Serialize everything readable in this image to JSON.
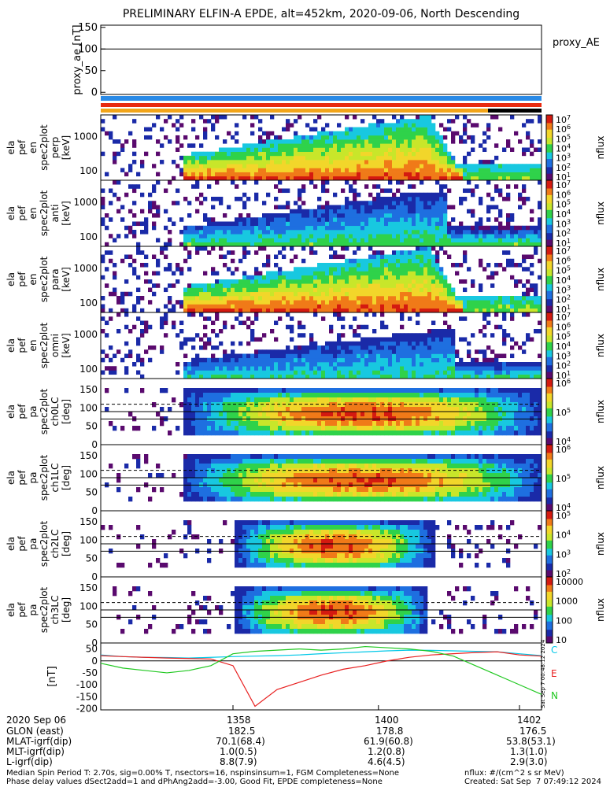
{
  "title": "PRELIMINARY ELFIN-A EPDE, alt=452km, 2020-09-06, North Descending",
  "side_stamp": "Sat Sep  7 00:48:12 2024",
  "colors": {
    "colorbar": [
      "#ffffff",
      "#5a0a6e",
      "#1a2aa8",
      "#1e6fe0",
      "#18c8e0",
      "#2fd24a",
      "#c8e62a",
      "#f2d62a",
      "#f07a18",
      "#d41a10"
    ]
  },
  "chart_data": [
    {
      "type": "line",
      "id": "proxy_ae",
      "ylabel": [
        "proxy_ae",
        "[nT]"
      ],
      "legend": "proxy_AE",
      "ylim": [
        -5,
        155
      ],
      "yticks": [
        "150",
        "100",
        "50",
        "0"
      ],
      "series": [
        {
          "name": "proxy_AE",
          "values_note": "",
          "values": [
            0
          ]
        }
      ]
    },
    {
      "type": "heatmap",
      "id": "spec-perp",
      "ylabel": [
        "ela",
        "pef",
        "en",
        "spec2plot",
        "perp",
        "[keV]"
      ],
      "log": true,
      "yticks": [
        "1000",
        "100"
      ],
      "colorbar": {
        "label": "nflux",
        "ticks": [
          "10",
          "10",
          "10",
          "10",
          "10",
          "10",
          "10"
        ],
        "exps": [
          "1",
          "2",
          "3",
          "4",
          "5",
          "6",
          "7"
        ]
      },
      "intensity": "perp"
    },
    {
      "type": "heatmap",
      "id": "spec-anti",
      "ylabel": [
        "ela",
        "pef",
        "en",
        "spec2plot",
        "anti",
        "[keV]"
      ],
      "log": true,
      "yticks": [
        "1000",
        "100"
      ],
      "colorbar": {
        "label": "nflux",
        "ticks": [
          "10",
          "10",
          "10",
          "10",
          "10",
          "10",
          "10"
        ],
        "exps": [
          "1",
          "2",
          "3",
          "4",
          "5",
          "6",
          "7"
        ]
      },
      "intensity": "anti"
    },
    {
      "type": "heatmap",
      "id": "spec-para",
      "ylabel": [
        "ela",
        "pef",
        "en",
        "spec2plot",
        "para",
        "[keV]"
      ],
      "log": true,
      "yticks": [
        "1000",
        "100"
      ],
      "colorbar": {
        "label": "nflux",
        "ticks": [
          "10",
          "10",
          "10",
          "10",
          "10",
          "10",
          "10"
        ],
        "exps": [
          "1",
          "2",
          "3",
          "4",
          "5",
          "6",
          "7"
        ]
      },
      "intensity": "para"
    },
    {
      "type": "heatmap",
      "id": "spec-all",
      "ylabel": [
        "ela",
        "pef",
        "en",
        "spec2plot",
        "omni",
        "[keV]"
      ],
      "log": true,
      "yticks": [
        "1000",
        "100"
      ],
      "colorbar": {
        "label": "nflux",
        "ticks": [
          "10",
          "10",
          "10",
          "10",
          "10",
          "10",
          "10"
        ],
        "exps": [
          "1",
          "2",
          "3",
          "4",
          "5",
          "6",
          "7"
        ]
      },
      "intensity": "omni"
    },
    {
      "type": "heatmap",
      "id": "pa-ch0",
      "ylabel": [
        "ela",
        "pef",
        "pa",
        "spec2plot",
        "ch0LC",
        "[deg]"
      ],
      "yticks": [
        "150",
        "100",
        "50",
        "0"
      ],
      "colorbar": {
        "label": "nflux",
        "ticks": [
          "10",
          "10",
          "10"
        ],
        "exps": [
          "4",
          "5",
          "6"
        ]
      },
      "intensity": "ch0"
    },
    {
      "type": "heatmap",
      "id": "pa-ch1",
      "ylabel": [
        "ela",
        "pef",
        "pa",
        "spec2plot",
        "ch1LC",
        "[deg]"
      ],
      "yticks": [
        "150",
        "100",
        "50",
        "0"
      ],
      "colorbar": {
        "label": "nflux",
        "ticks": [
          "10",
          "10",
          "10"
        ],
        "exps": [
          "4",
          "5",
          "6"
        ]
      },
      "intensity": "ch1"
    },
    {
      "type": "heatmap",
      "id": "pa-ch2",
      "ylabel": [
        "ela",
        "pef",
        "pa",
        "spec2plot",
        "ch2LC",
        "[deg]"
      ],
      "yticks": [
        "150",
        "100",
        "50",
        "0"
      ],
      "colorbar": {
        "label": "nflux",
        "ticks": [
          "10",
          "10",
          "10",
          "10"
        ],
        "exps": [
          "2",
          "3",
          "4",
          "5"
        ]
      },
      "intensity": "ch2"
    },
    {
      "type": "heatmap",
      "id": "pa-ch3",
      "ylabel": [
        "ela",
        "pef",
        "pa",
        "spec2plot",
        "ch3LC",
        "[deg]"
      ],
      "yticks": [
        "150",
        "100",
        "50",
        "0"
      ],
      "colorbar": {
        "label": "nflux",
        "ticks": [
          "10000",
          "1000",
          "100",
          "10"
        ]
      },
      "intensity": "ch3"
    },
    {
      "type": "line",
      "id": "dB",
      "ylabel": [
        "[nT]"
      ],
      "ylim": [
        -205,
        75
      ],
      "yticks": [
        "50",
        "0",
        "-50",
        "-100",
        "-150",
        "-200"
      ],
      "x": [
        0,
        5,
        10,
        15,
        20,
        25,
        30,
        35,
        40,
        45,
        50,
        55,
        60,
        65,
        70,
        75,
        80,
        85,
        90,
        95,
        100
      ],
      "series": [
        {
          "name": "C",
          "color": "#00c8e8",
          "values": [
            25,
            18,
            15,
            14,
            12,
            15,
            18,
            20,
            22,
            25,
            30,
            34,
            38,
            42,
            45,
            44,
            42,
            40,
            38,
            30,
            22
          ]
        },
        {
          "name": "E",
          "color": "#e82020",
          "values": [
            22,
            18,
            15,
            12,
            10,
            8,
            -20,
            -190,
            -120,
            -90,
            -60,
            -35,
            -20,
            0,
            15,
            25,
            30,
            35,
            38,
            25,
            20
          ]
        },
        {
          "name": "N",
          "color": "#20c820",
          "values": [
            -10,
            -30,
            -40,
            -50,
            -40,
            -20,
            30,
            40,
            45,
            50,
            45,
            50,
            60,
            55,
            50,
            40,
            20,
            -20,
            -60,
            -100,
            -140
          ]
        }
      ]
    }
  ],
  "footer": {
    "date": "2020 Sep 06",
    "times": [
      "1358",
      "1400",
      "1402"
    ],
    "rows": [
      {
        "label": "GLON (east)",
        "values": [
          "182.5",
          "178.8",
          "176.5"
        ]
      },
      {
        "label": "MLAT-igrf(dip)",
        "values": [
          "70.1(68.4)",
          "61.9(60.8)",
          "53.8(53.1)"
        ]
      },
      {
        "label": "MLT-igrf(dip)",
        "values": [
          "1.0(0.5)",
          "1.2(0.8)",
          "1.3(1.0)"
        ]
      },
      {
        "label": "L-igrf(dip)",
        "values": [
          "8.8(7.9)",
          "4.6(4.5)",
          "2.9(3.0)"
        ]
      }
    ],
    "notes": [
      "Median Spin Period T: 2.70s, sig=0.00% T, nsectors=16, nspinsinsum=1, FGM Completeness=None",
      "Phase delay values dSect2add=1 and dPhAng2add=-3.00, Good Fit, EPDE completeness=None",
      "nflux: #/(cm^2 s sr MeV)",
      "Created: Sat Sep  7 07:49:12 2024"
    ]
  }
}
